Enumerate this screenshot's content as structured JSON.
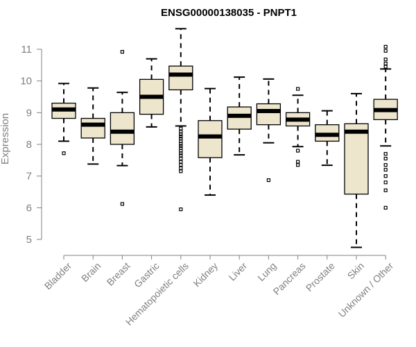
{
  "chart_data": {
    "type": "boxplot",
    "title": "ENSG00000138035 - PNPT1",
    "xlabel": "",
    "ylabel": "Expression",
    "ylim": [
      4.8,
      11.8
    ],
    "yticks": [
      5,
      6,
      7,
      8,
      9,
      10,
      11
    ],
    "colors": {
      "box_fill": "#ede5cc",
      "stroke": "#000000",
      "axis": "#808080"
    },
    "categories": [
      "Bladder",
      "Brain",
      "Breast",
      "Gastric",
      "Hematopoietic cells",
      "Kidney",
      "Liver",
      "Lung",
      "Pancreas",
      "Prostate",
      "Skin",
      "Unknown / Other"
    ],
    "boxes": [
      {
        "name": "Bladder",
        "whisker_low": 8.1,
        "q1": 8.82,
        "median": 9.1,
        "q3": 9.3,
        "whisker_high": 9.92,
        "outliers": [
          7.72
        ]
      },
      {
        "name": "Brain",
        "whisker_low": 7.38,
        "q1": 8.2,
        "median": 8.62,
        "q3": 8.82,
        "whisker_high": 9.78,
        "outliers": []
      },
      {
        "name": "Breast",
        "whisker_low": 7.33,
        "q1": 8.0,
        "median": 8.4,
        "q3": 9.0,
        "whisker_high": 9.64,
        "outliers": [
          6.12,
          10.92
        ]
      },
      {
        "name": "Gastric",
        "whisker_low": 8.55,
        "q1": 8.95,
        "median": 9.5,
        "q3": 10.05,
        "whisker_high": 10.7,
        "outliers": []
      },
      {
        "name": "Hematopoietic cells",
        "whisker_low": 8.58,
        "q1": 9.72,
        "median": 10.2,
        "q3": 10.47,
        "whisker_high": 11.65,
        "outliers": [
          5.95,
          7.15,
          7.25,
          7.35,
          7.45,
          7.55,
          7.65,
          7.72,
          7.8,
          7.88,
          7.95,
          8.02,
          8.1,
          8.18,
          8.25,
          8.32,
          8.4,
          8.5
        ]
      },
      {
        "name": "Kidney",
        "whisker_low": 6.4,
        "q1": 7.58,
        "median": 8.25,
        "q3": 8.75,
        "whisker_high": 9.76,
        "outliers": []
      },
      {
        "name": "Liver",
        "whisker_low": 7.67,
        "q1": 8.48,
        "median": 8.9,
        "q3": 9.18,
        "whisker_high": 10.12,
        "outliers": []
      },
      {
        "name": "Lung",
        "whisker_low": 8.05,
        "q1": 8.62,
        "median": 9.05,
        "q3": 9.28,
        "whisker_high": 10.06,
        "outliers": [
          6.87
        ]
      },
      {
        "name": "Pancreas",
        "whisker_low": 7.93,
        "q1": 8.58,
        "median": 8.78,
        "q3": 9.0,
        "whisker_high": 9.55,
        "outliers": [
          7.35,
          7.45,
          7.8,
          9.75
        ]
      },
      {
        "name": "Prostate",
        "whisker_low": 7.34,
        "q1": 8.1,
        "median": 8.3,
        "q3": 8.62,
        "whisker_high": 9.06,
        "outliers": []
      },
      {
        "name": "Skin",
        "whisker_low": 4.75,
        "q1": 6.43,
        "median": 8.4,
        "q3": 8.65,
        "whisker_high": 9.6,
        "outliers": []
      },
      {
        "name": "Unknown / Other",
        "whisker_low": 7.95,
        "q1": 8.78,
        "median": 9.08,
        "q3": 9.42,
        "whisker_high": 10.38,
        "outliers": [
          6.0,
          6.55,
          6.8,
          7.0,
          7.2,
          7.35,
          7.55,
          7.7,
          10.45,
          10.55,
          10.68,
          10.95,
          11.08
        ]
      }
    ]
  }
}
